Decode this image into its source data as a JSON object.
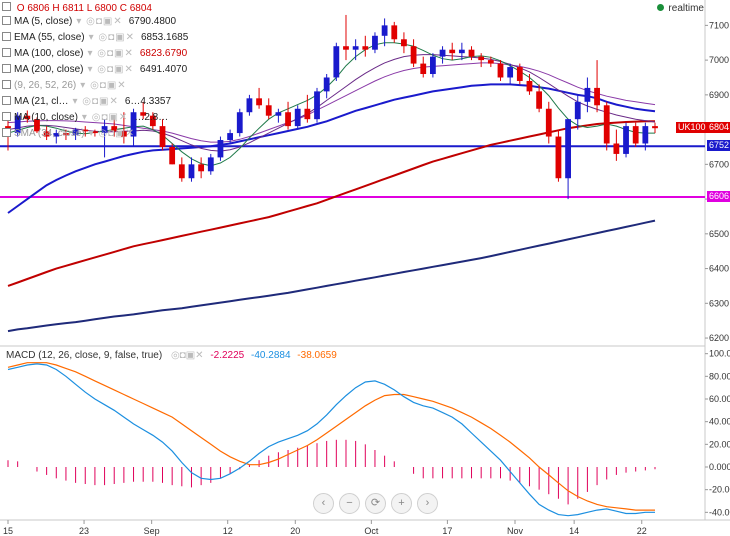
{
  "ohlc": {
    "o_label": "O",
    "open": "6806",
    "h_label": "H",
    "high": "6811",
    "l_label": "L",
    "low": "6800",
    "c_label": "C",
    "close": "6804"
  },
  "realtime_label": "realtime",
  "indicators": [
    {
      "label": "MA (5, close)",
      "value": "6790.4800",
      "color": "#222222"
    },
    {
      "label": "EMA (55, close)",
      "value": "6853.1685",
      "color": "#222222"
    },
    {
      "label": "MA (100, close)",
      "value": "6823.6790",
      "color": "#cc0000"
    },
    {
      "label": "MA (200, close)",
      "value": "6491.4070",
      "color": "#222222"
    },
    {
      "label": "(9, 26, 52, 26)",
      "value": "",
      "color": "#999999"
    },
    {
      "label": "MA (21, cl…",
      "value": "6…4.3357",
      "color": "#222222"
    },
    {
      "label": "MA (10, close)",
      "value": "…2.8…",
      "color": "#222222"
    },
    {
      "label": "SMA (34, close)",
      "value": "",
      "color": "#999999"
    }
  ],
  "price_tags": [
    {
      "label": "UK100",
      "value": "6804",
      "color": "#e00000"
    },
    {
      "label": "",
      "value": "6752",
      "color": "#1a1acc"
    },
    {
      "label": "",
      "value": "6606",
      "color": "#e000e0"
    }
  ],
  "macd_legend": {
    "label": "MACD (12, 26, close, 9, false, true)",
    "hist": "-2.2225",
    "macd": "-40.2884",
    "signal": "-38.0659",
    "hist_color": "#e0005a",
    "macd_color": "#1c8fe0",
    "signal_color": "#ff6a00"
  },
  "nav_buttons": [
    "‹",
    "−",
    "⟳",
    "+",
    "›"
  ],
  "chart_data": [
    {
      "type": "line",
      "title": "UK100",
      "series_type": "candlestick",
      "ylim": [
        6180,
        7150
      ],
      "y_ticks": [
        "7100",
        "7000",
        "6900",
        "6800",
        "6700",
        "6600",
        "6500",
        "6400",
        "6300",
        "6200"
      ],
      "x_ticks": [
        "15",
        "23",
        "Sep",
        "12",
        "20",
        "Oct",
        "17",
        "Nov",
        "14",
        "22"
      ],
      "candles": [
        [
          6810,
          6830,
          6740,
          6790
        ],
        [
          6790,
          6850,
          6780,
          6840
        ],
        [
          6840,
          6855,
          6820,
          6830
        ],
        [
          6830,
          6835,
          6790,
          6795
        ],
        [
          6795,
          6810,
          6770,
          6780
        ],
        [
          6780,
          6800,
          6760,
          6790
        ],
        [
          6790,
          6800,
          6770,
          6785
        ],
        [
          6785,
          6805,
          6770,
          6800
        ],
        [
          6800,
          6810,
          6780,
          6795
        ],
        [
          6795,
          6800,
          6780,
          6790
        ],
        [
          6790,
          6830,
          6720,
          6810
        ],
        [
          6810,
          6840,
          6780,
          6795
        ],
        [
          6795,
          6850,
          6760,
          6780
        ],
        [
          6780,
          6860,
          6750,
          6850
        ],
        [
          6850,
          6880,
          6830,
          6840
        ],
        [
          6840,
          6850,
          6800,
          6810
        ],
        [
          6810,
          6830,
          6740,
          6750
        ],
        [
          6750,
          6760,
          6700,
          6700
        ],
        [
          6700,
          6720,
          6650,
          6660
        ],
        [
          6660,
          6720,
          6650,
          6700
        ],
        [
          6700,
          6720,
          6660,
          6680
        ],
        [
          6680,
          6730,
          6670,
          6720
        ],
        [
          6720,
          6780,
          6710,
          6770
        ],
        [
          6770,
          6800,
          6760,
          6790
        ],
        [
          6790,
          6860,
          6780,
          6850
        ],
        [
          6850,
          6900,
          6840,
          6890
        ],
        [
          6890,
          6920,
          6860,
          6870
        ],
        [
          6870,
          6890,
          6830,
          6840
        ],
        [
          6840,
          6860,
          6820,
          6850
        ],
        [
          6850,
          6880,
          6800,
          6810
        ],
        [
          6810,
          6870,
          6800,
          6860
        ],
        [
          6860,
          6900,
          6820,
          6830
        ],
        [
          6830,
          6920,
          6820,
          6910
        ],
        [
          6910,
          6960,
          6890,
          6950
        ],
        [
          6950,
          7050,
          6940,
          7040
        ],
        [
          7040,
          7130,
          7000,
          7030
        ],
        [
          7030,
          7060,
          7000,
          7040
        ],
        [
          7040,
          7070,
          7010,
          7030
        ],
        [
          7030,
          7080,
          7020,
          7070
        ],
        [
          7070,
          7120,
          7040,
          7100
        ],
        [
          7100,
          7110,
          7050,
          7060
        ],
        [
          7060,
          7080,
          7020,
          7040
        ],
        [
          7040,
          7060,
          6980,
          6990
        ],
        [
          6990,
          7010,
          6950,
          6960
        ],
        [
          6960,
          7020,
          6950,
          7010
        ],
        [
          7010,
          7040,
          6990,
          7030
        ],
        [
          7030,
          7050,
          7000,
          7020
        ],
        [
          7020,
          7050,
          7000,
          7030
        ],
        [
          7030,
          7040,
          7000,
          7010
        ],
        [
          7010,
          7020,
          6980,
          7000
        ],
        [
          7000,
          7010,
          6980,
          6990
        ],
        [
          6990,
          7000,
          6940,
          6950
        ],
        [
          6950,
          6990,
          6930,
          6980
        ],
        [
          6980,
          6990,
          6930,
          6940
        ],
        [
          6940,
          6960,
          6900,
          6910
        ],
        [
          6910,
          6930,
          6850,
          6860
        ],
        [
          6860,
          6880,
          6760,
          6780
        ],
        [
          6780,
          6800,
          6650,
          6660
        ],
        [
          6660,
          6830,
          6600,
          6830
        ],
        [
          6830,
          6900,
          6800,
          6880
        ],
        [
          6880,
          6950,
          6850,
          6920
        ],
        [
          6920,
          7000,
          6850,
          6870
        ],
        [
          6870,
          6880,
          6740,
          6760
        ],
        [
          6760,
          6800,
          6710,
          6730
        ],
        [
          6730,
          6820,
          6720,
          6810
        ],
        [
          6810,
          6820,
          6750,
          6760
        ],
        [
          6760,
          6820,
          6740,
          6810
        ],
        [
          6810,
          6820,
          6790,
          6804
        ]
      ],
      "overlays": [
        {
          "name": "MA (200, close)",
          "color": "#1f2a7a",
          "values": [
            6220,
            6225,
            6228,
            6232,
            6236,
            6240,
            6243,
            6246,
            6250,
            6254,
            6258,
            6262,
            6265,
            6268,
            6272,
            6276,
            6280,
            6283,
            6286,
            6290,
            6294,
            6298,
            6302,
            6306,
            6310,
            6314,
            6318,
            6322,
            6326,
            6330,
            6335,
            6340,
            6345,
            6350,
            6355,
            6360,
            6365,
            6370,
            6375,
            6380,
            6385,
            6390,
            6395,
            6400,
            6405,
            6410,
            6415,
            6420,
            6425,
            6430,
            6436,
            6442,
            6448,
            6454,
            6460,
            6466,
            6472,
            6478,
            6484,
            6490,
            6496,
            6502,
            6508,
            6514,
            6520,
            6526,
            6532,
            6538
          ]
        },
        {
          "name": "MA (100, close)",
          "color": "#c00000",
          "values": [
            6350,
            6360,
            6370,
            6380,
            6390,
            6400,
            6408,
            6416,
            6424,
            6432,
            6440,
            6448,
            6456,
            6464,
            6470,
            6476,
            6482,
            6488,
            6494,
            6500,
            6506,
            6512,
            6518,
            6524,
            6530,
            6536,
            6542,
            6548,
            6556,
            6564,
            6572,
            6580,
            6588,
            6598,
            6608,
            6618,
            6628,
            6638,
            6648,
            6658,
            6668,
            6678,
            6688,
            6698,
            6708,
            6716,
            6724,
            6732,
            6740,
            6748,
            6756,
            6762,
            6768,
            6774,
            6780,
            6786,
            6792,
            6798,
            6804,
            6808,
            6812,
            6816,
            6818,
            6820,
            6822,
            6823,
            6824,
            6824
          ]
        },
        {
          "name": "EMA (55, close)",
          "color": "#1a1acc",
          "values": [
            6560,
            6580,
            6600,
            6620,
            6640,
            6655,
            6668,
            6680,
            6690,
            6700,
            6708,
            6716,
            6724,
            6730,
            6736,
            6740,
            6742,
            6744,
            6746,
            6748,
            6750,
            6752,
            6756,
            6760,
            6766,
            6772,
            6778,
            6784,
            6790,
            6796,
            6802,
            6808,
            6816,
            6824,
            6834,
            6844,
            6854,
            6862,
            6870,
            6878,
            6886,
            6892,
            6898,
            6904,
            6910,
            6914,
            6918,
            6922,
            6926,
            6928,
            6930,
            6930,
            6930,
            6928,
            6926,
            6922,
            6918,
            6912,
            6906,
            6900,
            6896,
            6890,
            6880,
            6872,
            6866,
            6860,
            6856,
            6853
          ]
        },
        {
          "name": "MA (21, close)",
          "color": "#8a3aa8",
          "values": [
            6820,
            6822,
            6824,
            6825,
            6826,
            6826,
            6825,
            6824,
            6822,
            6820,
            6818,
            6816,
            6812,
            6808,
            6804,
            6800,
            6796,
            6790,
            6782,
            6774,
            6768,
            6764,
            6764,
            6766,
            6772,
            6780,
            6790,
            6800,
            6810,
            6820,
            6830,
            6842,
            6856,
            6870,
            6884,
            6898,
            6912,
            6926,
            6940,
            6952,
            6962,
            6970,
            6976,
            6980,
            6982,
            6984,
            6986,
            6988,
            6990,
            6992,
            6992,
            6990,
            6986,
            6982,
            6976,
            6968,
            6958,
            6946,
            6934,
            6922,
            6912,
            6904,
            6896,
            6890,
            6884,
            6880,
            6876,
            6872
          ]
        },
        {
          "name": "MA (10, close)",
          "color": "#6a2a88",
          "values": [
            6800,
            6805,
            6810,
            6812,
            6812,
            6810,
            6806,
            6802,
            6798,
            6795,
            6794,
            6794,
            6795,
            6796,
            6798,
            6796,
            6790,
            6780,
            6768,
            6756,
            6746,
            6740,
            6738,
            6742,
            6750,
            6762,
            6776,
            6790,
            6804,
            6818,
            6832,
            6846,
            6864,
            6884,
            6904,
            6924,
            6944,
            6962,
            6978,
            6992,
            7002,
            7010,
            7014,
            7016,
            7016,
            7014,
            7012,
            7010,
            7008,
            7006,
            7002,
            6996,
            6988,
            6978,
            6966,
            6950,
            6932,
            6914,
            6896,
            6880,
            6868,
            6858,
            6850,
            6842,
            6836,
            6830,
            6826,
            6822
          ]
        },
        {
          "name": "MA (5, close)",
          "color": "#1f7a4a",
          "values": [
            6790,
            6798,
            6806,
            6812,
            6810,
            6804,
            6796,
            6790,
            6788,
            6792,
            6796,
            6800,
            6804,
            6808,
            6810,
            6800,
            6784,
            6760,
            6736,
            6716,
            6702,
            6696,
            6704,
            6720,
            6746,
            6776,
            6804,
            6830,
            6848,
            6860,
            6872,
            6884,
            6900,
            6922,
            6950,
            6984,
            7010,
            7030,
            7044,
            7050,
            7050,
            7046,
            7040,
            7028,
            7014,
            7004,
            7000,
            7004,
            7010,
            7012,
            7008,
            6998,
            6984,
            6968,
            6950,
            6926,
            6898,
            6862,
            6830,
            6812,
            6806,
            6810,
            6816,
            6810,
            6800,
            6792,
            6790,
            6790
          ]
        }
      ],
      "hlines": [
        {
          "name": "support-6752",
          "value": 6752,
          "color": "#1a1acc"
        },
        {
          "name": "support-6606",
          "value": 6606,
          "color": "#e000e0"
        }
      ]
    },
    {
      "type": "bar",
      "title": "MACD (12, 26, close, 9, false, true)",
      "ylim": [
        -45,
        105
      ],
      "y_ticks": [
        "100.00",
        "80.00",
        "60.00",
        "40.00",
        "20.00",
        "0.000",
        "-20.00",
        "-40.00"
      ],
      "histogram": [
        6,
        5,
        0,
        -4,
        -7,
        -10,
        -12,
        -14,
        -15,
        -16,
        -16,
        -15,
        -14,
        -13,
        -13,
        -13,
        -14,
        -16,
        -17,
        -18,
        -16,
        -14,
        -10,
        -6,
        -2,
        2,
        6,
        10,
        13,
        15,
        17,
        19,
        21,
        23,
        24,
        24,
        23,
        20,
        15,
        10,
        5,
        0,
        -6,
        -10,
        -10,
        -10,
        -10,
        -10,
        -10,
        -10,
        -10,
        -10,
        -12,
        -14,
        -17,
        -20,
        -24,
        -28,
        -33,
        -28,
        -22,
        -16,
        -11,
        -7,
        -5,
        -4,
        -3,
        -2
      ],
      "macd_values": [
        86,
        88,
        90,
        91,
        90,
        86,
        80,
        73,
        66,
        60,
        55,
        50,
        44,
        38,
        33,
        28,
        22,
        14,
        4,
        -5,
        -10,
        -11,
        -10,
        -6,
        -1,
        5,
        12,
        18,
        22,
        25,
        28,
        32,
        38,
        46,
        55,
        63,
        70,
        75,
        76,
        73,
        68,
        62,
        57,
        54,
        52,
        48,
        44,
        38,
        30,
        22,
        14,
        6,
        -4,
        -14,
        -24,
        -33,
        -38,
        -42,
        -43,
        -42,
        -40,
        -38,
        -37,
        -39,
        -41,
        -41,
        -40,
        -40
      ],
      "signal_values": [
        88,
        90,
        92,
        92,
        92,
        90,
        87,
        84,
        80,
        76,
        72,
        68,
        64,
        60,
        56,
        52,
        48,
        44,
        38,
        32,
        26,
        20,
        14,
        9,
        5,
        2,
        2,
        4,
        7,
        11,
        15,
        19,
        24,
        30,
        36,
        42,
        48,
        54,
        59,
        63,
        64,
        64,
        62,
        60,
        58,
        55,
        52,
        48,
        44,
        39,
        34,
        28,
        22,
        15,
        8,
        0,
        -7,
        -14,
        -21,
        -26,
        -30,
        -33,
        -35,
        -36,
        -37,
        -38,
        -38,
        -38
      ]
    }
  ]
}
